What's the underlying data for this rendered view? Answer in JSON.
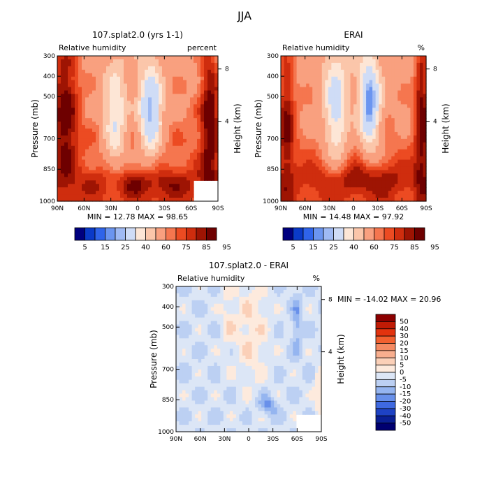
{
  "figure": {
    "title": "JJA"
  },
  "chart_data": [
    {
      "type": "heatmap",
      "title": "107.splat2.0 (yrs 1-1)",
      "subtitle_left": "Relative humidity",
      "subtitle_right": "percent",
      "ylabel": "Pressure (mb)",
      "ylabel_right": "Height (km)",
      "x_ticks": [
        "90N",
        "60N",
        "30N",
        "0",
        "30S",
        "60S",
        "90S"
      ],
      "y_ticks": [
        "300",
        "400",
        "500",
        "700",
        "850",
        "1000"
      ],
      "y_ticks_right": [
        "8",
        "4"
      ],
      "stats": "MIN =  12.78   MAX =  98.65",
      "colorbar": {
        "orientation": "horizontal",
        "labels": [
          "5",
          "15",
          "25",
          "40",
          "60",
          "75",
          "85",
          "95"
        ],
        "colors": [
          "#00007f",
          "#0a3ac8",
          "#2f64ea",
          "#6b95f0",
          "#9fbaf4",
          "#cfdcf6",
          "#fde6d6",
          "#fbc6aa",
          "#f9a07f",
          "#f5764f",
          "#ec4b22",
          "#cf2d0e",
          "#9e1403",
          "#6e0000"
        ]
      }
    },
    {
      "type": "heatmap",
      "title": "ERAI",
      "subtitle_left": "Relative humidity",
      "subtitle_right": "%",
      "ylabel": "Pressure (mb)",
      "ylabel_right": "Height (km)",
      "x_ticks": [
        "90N",
        "60N",
        "30N",
        "0",
        "30S",
        "60S",
        "90S"
      ],
      "y_ticks": [
        "300",
        "400",
        "500",
        "700",
        "850",
        "1000"
      ],
      "y_ticks_right": [
        "8",
        "4"
      ],
      "stats": "MIN =  14.48   MAX =  97.92",
      "colorbar": {
        "orientation": "horizontal",
        "labels": [
          "5",
          "15",
          "25",
          "40",
          "60",
          "75",
          "85",
          "95"
        ],
        "colors": [
          "#00007f",
          "#0a3ac8",
          "#2f64ea",
          "#6b95f0",
          "#9fbaf4",
          "#cfdcf6",
          "#fde6d6",
          "#fbc6aa",
          "#f9a07f",
          "#f5764f",
          "#ec4b22",
          "#cf2d0e",
          "#9e1403",
          "#6e0000"
        ]
      }
    },
    {
      "type": "heatmap",
      "title": "107.splat2.0 - ERAI",
      "subtitle_left": "Relative humidity",
      "subtitle_right": "%",
      "ylabel": "Pressure (mb)",
      "ylabel_right": "Height (km)",
      "x_ticks": [
        "90N",
        "60N",
        "30N",
        "0",
        "30S",
        "60S",
        "90S"
      ],
      "y_ticks": [
        "300",
        "400",
        "500",
        "700",
        "850",
        "1000"
      ],
      "y_ticks_right": [
        "8",
        "4"
      ],
      "stats": "MIN = -14.02   MAX =  20.96",
      "colorbar": {
        "orientation": "vertical",
        "labels": [
          "50",
          "40",
          "30",
          "20",
          "15",
          "10",
          "5",
          "0",
          "-5",
          "-10",
          "-15",
          "-20",
          "-30",
          "-40",
          "-50"
        ],
        "colors": [
          "#8c0000",
          "#c01b05",
          "#e2330e",
          "#f2602f",
          "#f58a62",
          "#f8ae8e",
          "#fbd0b8",
          "#fdeadd",
          "#dce6f6",
          "#bcd0f3",
          "#95b5f0",
          "#6890ea",
          "#3f69e0",
          "#1e42c4",
          "#0a1f94",
          "#000070"
        ]
      }
    }
  ]
}
